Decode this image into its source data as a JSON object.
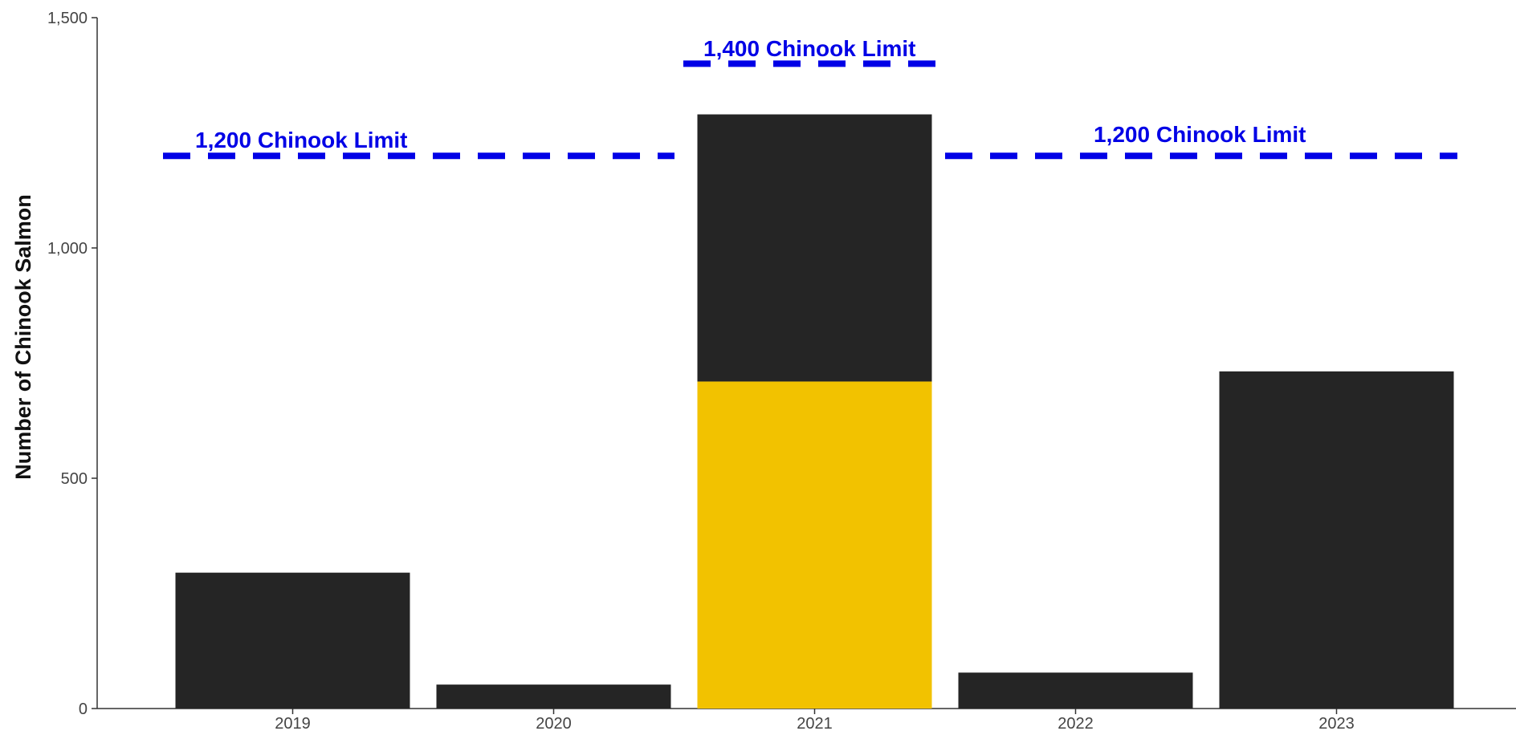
{
  "chart_data": {
    "type": "bar",
    "stacked": true,
    "categories": [
      "2019",
      "2020",
      "2021",
      "2022",
      "2023"
    ],
    "series": [
      {
        "values": [
          0,
          0,
          710,
          0,
          0
        ],
        "color": "#f2c200"
      },
      {
        "values": [
          295,
          52,
          580,
          78,
          732
        ],
        "color": "#252525"
      }
    ],
    "ylabel": "Number of Chinook Salmon",
    "xlabel": "",
    "ylim": [
      0,
      1500
    ],
    "yticks": [
      0,
      500,
      1000,
      1500
    ],
    "ytick_labels": [
      "0",
      "500",
      "1,000",
      "1,500"
    ],
    "grid": false,
    "reference_lines": [
      {
        "value": 1200,
        "from_category": "2019",
        "to_category": "2020",
        "label": "1,200 Chinook Limit",
        "color": "#0000e6"
      },
      {
        "value": 1400,
        "from_category": "2021",
        "to_category": "2021",
        "label": "1,400 Chinook Limit",
        "color": "#0000e6"
      },
      {
        "value": 1200,
        "from_category": "2022",
        "to_category": "2023",
        "label": "1,200 Chinook Limit",
        "color": "#0000e6"
      }
    ]
  }
}
